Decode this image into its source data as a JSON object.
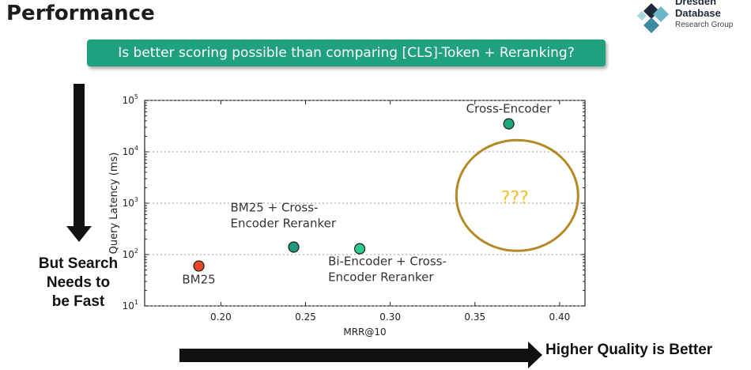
{
  "slide": {
    "title": "Performance",
    "logo": {
      "line1": "Dresden",
      "line2": "Database",
      "line3": "Research Group",
      "colors": [
        "#1e2a3a",
        "#6ab7c8",
        "#3d8aa3",
        "#a9d6de"
      ]
    },
    "question": "Is better scoring possible than comparing [CLS]-Token + Reranking?",
    "side_note": [
      "But Search",
      "Needs to",
      "be Fast"
    ],
    "bottom_note": "Higher Quality is Better",
    "colors": {
      "banner": "#1fa07f",
      "arrow": "#111111",
      "circle": "#b48a26",
      "question_marks": "#f2c029"
    }
  },
  "chart_data": {
    "type": "scatter",
    "xlabel": "MRR@10",
    "ylabel": "Query Latency (ms)",
    "xlim": [
      0.155,
      0.415
    ],
    "ylim": [
      1,
      5
    ],
    "y_scale": "log",
    "grid": "dotted",
    "x_ticks": [
      0.2,
      0.25,
      0.3,
      0.35,
      0.4
    ],
    "x_tick_labels": [
      "0.20",
      "0.25",
      "0.30",
      "0.35",
      "0.40"
    ],
    "y_ticks": [
      1,
      2,
      3,
      4,
      5
    ],
    "y_tick_labels": [
      "10",
      "10",
      "10",
      "10",
      "10"
    ],
    "y_tick_exponents": [
      "1",
      "2",
      "3",
      "4",
      "5"
    ],
    "points": [
      {
        "label_lines": [
          "BM25"
        ],
        "x": 0.187,
        "y": 60,
        "color": "#e8472a"
      },
      {
        "label_lines": [
          "BM25 + Cross-",
          "Encoder Reranker"
        ],
        "x": 0.243,
        "y": 140,
        "color": "#1c9a7e"
      },
      {
        "label_lines": [
          "Bi-Encoder + Cross-",
          "Encoder Reranker"
        ],
        "x": 0.282,
        "y": 130,
        "color": "#2ec98e"
      },
      {
        "label_lines": [
          "Cross-Encoder"
        ],
        "x": 0.37,
        "y": 35000,
        "color": "#1fa87f"
      }
    ],
    "annotation": {
      "text": "???",
      "x": 0.375,
      "y": 800
    }
  }
}
